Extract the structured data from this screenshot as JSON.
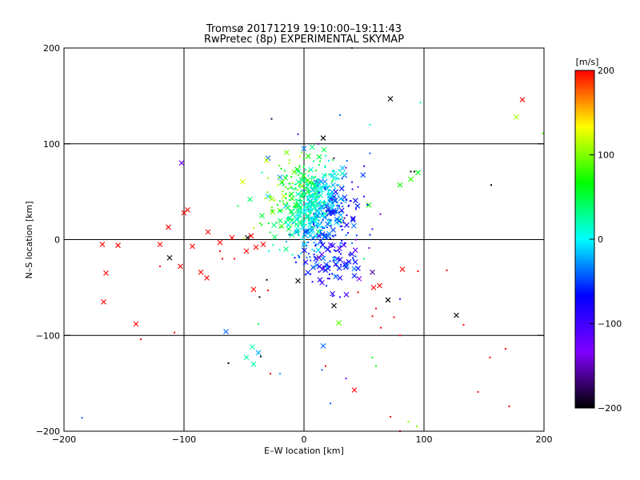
{
  "chart_data": {
    "type": "scatter",
    "title": "Tromsø 20171219 19:10:00–19:11:43",
    "subtitle": "RwPretec (8p) EXPERIMENTAL SKYMAP",
    "xlabel": "E–W location [km]",
    "ylabel": "N–S location [km]",
    "xlim": [
      -200,
      200
    ],
    "ylim": [
      -200,
      200
    ],
    "x_ticks": [
      -200,
      -100,
      0,
      100,
      200
    ],
    "y_ticks": [
      -200,
      -100,
      0,
      100,
      200
    ],
    "x_tick_labels": [
      "−200",
      "−100",
      "0",
      "100",
      "200"
    ],
    "y_tick_labels": [
      "−200",
      "−100",
      "0",
      "100",
      "200"
    ],
    "grid": true,
    "colorbar": {
      "label": "[m/s]",
      "range": [
        -200,
        200
      ],
      "ticks": [
        200,
        100,
        0,
        -100,
        -200
      ],
      "tick_labels": [
        "200",
        "100",
        "0",
        "−100",
        "−200"
      ],
      "colormap": [
        "#000000",
        "#8000ff",
        "#0000ff",
        "#00ffff",
        "#00ff00",
        "#ffff00",
        "#ff0000"
      ]
    },
    "points": [
      {
        "x": -168,
        "y": -5,
        "v": 200,
        "m": "x"
      },
      {
        "x": -155,
        "y": -6,
        "v": 200,
        "m": "x"
      },
      {
        "x": -165,
        "y": -35,
        "v": 200,
        "m": "x"
      },
      {
        "x": -167,
        "y": -65,
        "v": 200,
        "m": "x"
      },
      {
        "x": -140,
        "y": -88,
        "v": 200,
        "m": "x"
      },
      {
        "x": -113,
        "y": 13,
        "v": 200,
        "m": "x"
      },
      {
        "x": -120,
        "y": -5,
        "v": 200,
        "m": "x"
      },
      {
        "x": -112,
        "y": -19,
        "v": -200,
        "m": "x"
      },
      {
        "x": -103,
        "y": -28,
        "v": 200,
        "m": "x"
      },
      {
        "x": -97,
        "y": 31,
        "v": 200,
        "m": "x"
      },
      {
        "x": -100,
        "y": 28,
        "v": 200,
        "m": "x"
      },
      {
        "x": -93,
        "y": -7,
        "v": 200,
        "m": "x"
      },
      {
        "x": -86,
        "y": -34,
        "v": 200,
        "m": "x"
      },
      {
        "x": -81,
        "y": -40,
        "v": 200,
        "m": "x"
      },
      {
        "x": -80,
        "y": 8,
        "v": 200,
        "m": "x"
      },
      {
        "x": -70,
        "y": -3,
        "v": 200,
        "m": "x"
      },
      {
        "x": -60,
        "y": 2,
        "v": 200,
        "m": "x"
      },
      {
        "x": -48,
        "y": -12,
        "v": 200,
        "m": "x"
      },
      {
        "x": -44,
        "y": 4,
        "v": 200,
        "m": "x"
      },
      {
        "x": -40,
        "y": -8,
        "v": 200,
        "m": "x"
      },
      {
        "x": -34,
        "y": -5,
        "v": 200,
        "m": "x"
      },
      {
        "x": -47,
        "y": 2,
        "v": -200,
        "m": "x"
      },
      {
        "x": -42,
        "y": -52,
        "v": 200,
        "m": "x"
      },
      {
        "x": -102,
        "y": 80,
        "v": -120,
        "m": "x"
      },
      {
        "x": -65,
        "y": -96,
        "v": -40,
        "m": "x"
      },
      {
        "x": -43,
        "y": -112,
        "v": 20,
        "m": "x"
      },
      {
        "x": -48,
        "y": -123,
        "v": 20,
        "m": "x"
      },
      {
        "x": -38,
        "y": -118,
        "v": -20,
        "m": "x"
      },
      {
        "x": -42,
        "y": -130,
        "v": 20,
        "m": "x"
      },
      {
        "x": -5,
        "y": -43,
        "v": -200,
        "m": "x"
      },
      {
        "x": 25,
        "y": -69,
        "v": -200,
        "m": "x"
      },
      {
        "x": 16,
        "y": 106,
        "v": -200,
        "m": "x"
      },
      {
        "x": 72,
        "y": 147,
        "v": -200,
        "m": "x"
      },
      {
        "x": 70,
        "y": -63,
        "v": -200,
        "m": "x"
      },
      {
        "x": 127,
        "y": -79,
        "v": -200,
        "m": "x"
      },
      {
        "x": 16,
        "y": -111,
        "v": -40,
        "m": "x"
      },
      {
        "x": 29,
        "y": -87,
        "v": 90,
        "m": "x"
      },
      {
        "x": 42,
        "y": -157,
        "v": 200,
        "m": "x"
      },
      {
        "x": 57,
        "y": -34,
        "v": -160,
        "m": "x"
      },
      {
        "x": 58,
        "y": -50,
        "v": 200,
        "m": "x"
      },
      {
        "x": 63,
        "y": -48,
        "v": 200,
        "m": "x"
      },
      {
        "x": 82,
        "y": -31,
        "v": 200,
        "m": "x"
      },
      {
        "x": 182,
        "y": 146,
        "v": 200,
        "m": "x"
      },
      {
        "x": 177,
        "y": 128,
        "v": 110,
        "m": "x"
      },
      {
        "x": 95,
        "y": 70,
        "v": 60,
        "m": "x"
      },
      {
        "x": 89,
        "y": 63,
        "v": 80,
        "m": "x"
      },
      {
        "x": 80,
        "y": 57,
        "v": 70,
        "m": "x"
      },
      {
        "x": 54,
        "y": 36,
        "v": 70,
        "m": "x"
      },
      {
        "x": 20,
        "y": -30,
        "v": -60,
        "m": "x"
      },
      {
        "x": 30,
        "y": -40,
        "v": -80,
        "m": "x"
      },
      {
        "x": 10,
        "y": -20,
        "v": -60,
        "m": "x"
      },
      {
        "x": -20,
        "y": 30,
        "v": 20,
        "m": "x"
      },
      {
        "x": -15,
        "y": 35,
        "v": -20,
        "m": "x"
      },
      {
        "x": -10,
        "y": 20,
        "v": 40,
        "m": "x"
      },
      {
        "x": 5,
        "y": 40,
        "v": -40,
        "m": "x"
      },
      {
        "x": 15,
        "y": 25,
        "v": -20,
        "m": "x"
      },
      {
        "x": -25,
        "y": 15,
        "v": 30,
        "m": "x"
      },
      {
        "x": -5,
        "y": 10,
        "v": 20,
        "m": "x"
      },
      {
        "x": 0,
        "y": 50,
        "v": -30,
        "m": "x"
      },
      {
        "x": -30,
        "y": 45,
        "v": -10,
        "m": "x"
      },
      {
        "x": 10,
        "y": 60,
        "v": -40,
        "m": "x"
      },
      {
        "x": -20,
        "y": 65,
        "v": -30,
        "m": "x"
      },
      {
        "x": 25,
        "y": 45,
        "v": -100,
        "m": "x"
      },
      {
        "x": 35,
        "y": -25,
        "v": -110,
        "m": "x"
      },
      {
        "x": 40,
        "y": -15,
        "v": -80,
        "m": "x"
      },
      {
        "x": 15,
        "y": -45,
        "v": -100,
        "m": "x"
      },
      {
        "x": 45,
        "y": -30,
        "v": -70,
        "m": "x"
      },
      {
        "x": 20,
        "y": -10,
        "v": -50,
        "m": "x"
      },
      {
        "x": -45,
        "y": 42,
        "v": 40,
        "m": "x"
      },
      {
        "x": -30,
        "y": 85,
        "v": -40,
        "m": "x"
      },
      {
        "x": 0,
        "y": 95,
        "v": -30,
        "m": "x"
      },
      {
        "x": 5,
        "y": 15,
        "v": 10,
        "m": "x"
      },
      {
        "x": -10,
        "y": 5,
        "v": 30,
        "m": "x"
      },
      {
        "x": 12,
        "y": 8,
        "v": 40,
        "m": "x"
      },
      {
        "x": -35,
        "y": 25,
        "v": 50,
        "m": "x"
      },
      {
        "x": 30,
        "y": 20,
        "v": 60,
        "m": "x"
      },
      {
        "x": -15,
        "y": -10,
        "v": 30,
        "m": "x"
      },
      {
        "x": 0,
        "y": -5,
        "v": -40,
        "m": "x"
      },
      {
        "x": -27,
        "y": 126,
        "v": -180,
        "m": "d"
      },
      {
        "x": 40,
        "y": 200,
        "v": -40,
        "m": "d"
      },
      {
        "x": 97,
        "y": 143,
        "v": 30,
        "m": "d"
      },
      {
        "x": 156,
        "y": 57,
        "v": -200,
        "m": "d"
      },
      {
        "x": 199,
        "y": 111,
        "v": 90,
        "m": "d"
      },
      {
        "x": -120,
        "y": -28,
        "v": 200,
        "m": "d"
      },
      {
        "x": -108,
        "y": -97,
        "v": 200,
        "m": "d"
      },
      {
        "x": -136,
        "y": -104,
        "v": 200,
        "m": "d"
      },
      {
        "x": -63,
        "y": -129,
        "v": -200,
        "m": "d"
      },
      {
        "x": -38,
        "y": -88,
        "v": 40,
        "m": "d"
      },
      {
        "x": -37,
        "y": -60,
        "v": -200,
        "m": "d"
      },
      {
        "x": -36,
        "y": -122,
        "v": -200,
        "m": "d"
      },
      {
        "x": -28,
        "y": -140,
        "v": 200,
        "m": "d"
      },
      {
        "x": -20,
        "y": -140,
        "v": -20,
        "m": "d"
      },
      {
        "x": -185,
        "y": -186,
        "v": -40,
        "m": "d"
      },
      {
        "x": -30,
        "y": -53,
        "v": 200,
        "m": "d"
      },
      {
        "x": -31,
        "y": -42,
        "v": -200,
        "m": "d"
      },
      {
        "x": -58,
        "y": -20,
        "v": 200,
        "m": "d"
      },
      {
        "x": 18,
        "y": -132,
        "v": 200,
        "m": "d"
      },
      {
        "x": 15,
        "y": -136,
        "v": -40,
        "m": "d"
      },
      {
        "x": 22,
        "y": -171,
        "v": -40,
        "m": "d"
      },
      {
        "x": 35,
        "y": -145,
        "v": -120,
        "m": "d"
      },
      {
        "x": 57,
        "y": -123,
        "v": 60,
        "m": "d"
      },
      {
        "x": 60,
        "y": -132,
        "v": 60,
        "m": "d"
      },
      {
        "x": 60,
        "y": -72,
        "v": 200,
        "m": "d"
      },
      {
        "x": 57,
        "y": -80,
        "v": 200,
        "m": "d"
      },
      {
        "x": 64,
        "y": -92,
        "v": 200,
        "m": "d"
      },
      {
        "x": 80,
        "y": -62,
        "v": -120,
        "m": "d"
      },
      {
        "x": 75,
        "y": -81,
        "v": 200,
        "m": "d"
      },
      {
        "x": 80,
        "y": -100,
        "v": 200,
        "m": "d"
      },
      {
        "x": 95,
        "y": -33,
        "v": 200,
        "m": "d"
      },
      {
        "x": 119,
        "y": -32,
        "v": 200,
        "m": "d"
      },
      {
        "x": 133,
        "y": -89,
        "v": 200,
        "m": "d"
      },
      {
        "x": 145,
        "y": -159,
        "v": 200,
        "m": "d"
      },
      {
        "x": 155,
        "y": -123,
        "v": 200,
        "m": "d"
      },
      {
        "x": 168,
        "y": -114,
        "v": 200,
        "m": "d"
      },
      {
        "x": 171,
        "y": -174,
        "v": 200,
        "m": "d"
      },
      {
        "x": 87,
        "y": -190,
        "v": 100,
        "m": "d"
      },
      {
        "x": 94,
        "y": -195,
        "v": 100,
        "m": "d"
      },
      {
        "x": 80,
        "y": -200,
        "v": 200,
        "m": "d"
      },
      {
        "x": 72,
        "y": -185,
        "v": 200,
        "m": "d"
      },
      {
        "x": 89,
        "y": 71,
        "v": -200,
        "m": "d"
      },
      {
        "x": 92,
        "y": 71,
        "v": -200,
        "m": "d"
      },
      {
        "x": 55,
        "y": 90,
        "v": -40,
        "m": "d"
      },
      {
        "x": 30,
        "y": 130,
        "v": -40,
        "m": "d"
      },
      {
        "x": 55,
        "y": 120,
        "v": 10,
        "m": "d"
      },
      {
        "x": -35,
        "y": 70,
        "v": 20,
        "m": "d"
      },
      {
        "x": -55,
        "y": 35,
        "v": 40,
        "m": "d"
      },
      {
        "x": -68,
        "y": -20,
        "v": 200,
        "m": "d"
      },
      {
        "x": -70,
        "y": -12,
        "v": 200,
        "m": "d"
      },
      {
        "x": 40,
        "y": 60,
        "v": -100,
        "m": "d"
      },
      {
        "x": 45,
        "y": 55,
        "v": -120,
        "m": "d"
      },
      {
        "x": 50,
        "y": 45,
        "v": -90,
        "m": "d"
      },
      {
        "x": 35,
        "y": 75,
        "v": -150,
        "m": "d"
      },
      {
        "x": 25,
        "y": 85,
        "v": -170,
        "m": "d"
      },
      {
        "x": 12,
        "y": 100,
        "v": -150,
        "m": "d"
      },
      {
        "x": -5,
        "y": 110,
        "v": -100,
        "m": "d"
      },
      {
        "x": 30,
        "y": -60,
        "v": -100,
        "m": "d"
      },
      {
        "x": 45,
        "y": -55,
        "v": 200,
        "m": "d"
      },
      {
        "x": 50,
        "y": -20,
        "v": 40,
        "m": "d"
      },
      {
        "x": 55,
        "y": 5,
        "v": -60,
        "m": "d"
      }
    ]
  }
}
